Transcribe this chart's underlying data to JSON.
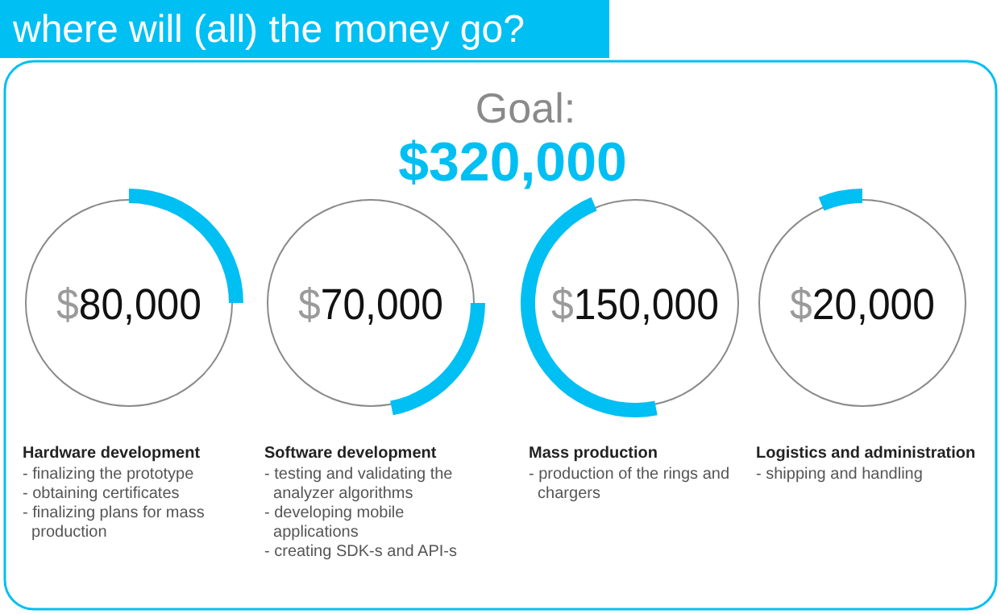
{
  "chart_data": {
    "type": "other",
    "title": "where will (all) the money go?",
    "subtitle": "Goal:",
    "color": "#00bff3",
    "categories": [
      "Hardware development",
      "Software development",
      "Mass production",
      "Logistics and administration"
    ],
    "values": [
      80000,
      70000,
      150000,
      20000
    ],
    "value_labels": [
      "$80,000",
      "$70,000",
      "$150,000",
      "$20,000"
    ],
    "totals": [
      "$320,000"
    ],
    "annotations": [
      {
        "text": "- finalizing the prototype",
        "x": "Hardware development"
      },
      {
        "text": "- obtaining certificates",
        "x": "Hardware development"
      },
      {
        "text": "- finalizing plans for mass production",
        "x": "Hardware development"
      },
      {
        "text": "- testing and validating the analyzer algorithms",
        "x": "Software development"
      },
      {
        "text": "- developing mobile applications",
        "x": "Software development"
      },
      {
        "text": "- creating SDK-s and API-s",
        "x": "Software development"
      },
      {
        "text": "- production of the rings and chargers",
        "x": "Mass production"
      },
      {
        "text": "- shipping and handling",
        "x": "Logistics and administration"
      }
    ]
  }
}
